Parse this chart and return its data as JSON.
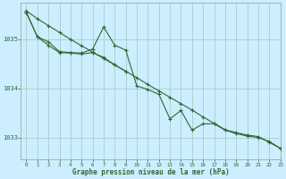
{
  "title": "Graphe pression niveau de la mer (hPa)",
  "background_color": "#cceeff",
  "grid_color": "#aacccc",
  "line_color": "#336633",
  "xlim": [
    -0.5,
    23
  ],
  "ylim": [
    1032.55,
    1035.75
  ],
  "yticks": [
    1033,
    1034,
    1035
  ],
  "xticks": [
    0,
    1,
    2,
    3,
    4,
    5,
    6,
    7,
    8,
    9,
    10,
    11,
    12,
    13,
    14,
    15,
    16,
    17,
    18,
    19,
    20,
    21,
    22,
    23
  ],
  "series_straight_x": [
    0,
    1,
    2,
    3,
    4,
    5,
    6,
    7,
    8,
    9,
    10,
    11,
    12,
    13,
    14,
    15,
    16,
    17,
    18,
    19,
    20,
    21,
    22,
    23
  ],
  "series_straight_y": [
    1035.58,
    1035.42,
    1035.28,
    1035.14,
    1035.0,
    1034.87,
    1034.74,
    1034.61,
    1034.48,
    1034.35,
    1034.22,
    1034.08,
    1033.95,
    1033.82,
    1033.69,
    1033.56,
    1033.42,
    1033.29,
    1033.16,
    1033.1,
    1033.05,
    1033.02,
    1032.9,
    1032.78
  ],
  "series_wiggly_x": [
    0,
    1,
    2,
    3,
    4,
    5,
    6,
    7,
    8,
    9,
    10,
    11,
    12,
    13,
    14,
    15,
    16,
    17,
    18,
    19,
    20,
    21,
    22,
    23
  ],
  "series_wiggly_y": [
    1035.55,
    1035.05,
    1034.95,
    1034.75,
    1034.73,
    1034.72,
    1034.8,
    1035.25,
    1034.88,
    1034.78,
    1034.05,
    1033.98,
    1033.88,
    1033.38,
    1033.55,
    1033.15,
    1033.28,
    1033.28,
    1033.15,
    1033.08,
    1033.03,
    1033.0,
    1032.92,
    1032.78
  ],
  "series_smooth_x": [
    0,
    1,
    2,
    3,
    4,
    5,
    6,
    7,
    8,
    9
  ],
  "series_smooth_y": [
    1035.55,
    1035.05,
    1034.88,
    1034.73,
    1034.72,
    1034.7,
    1034.73,
    1034.63,
    1034.48,
    1034.35
  ]
}
